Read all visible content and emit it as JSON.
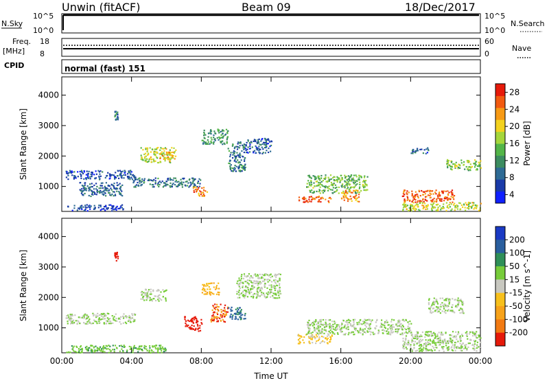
{
  "header": {
    "station": "Unwin (fitACF)",
    "beam": "Beam 09",
    "date": "18/Dec/2017"
  },
  "strips": {
    "nsky_label": "N.Sky",
    "nsky_top": "10^5",
    "nsky_bottom": "10^0",
    "nsearch_label": "N.Search",
    "nsearch_top": "10^5",
    "nsearch_bottom": "10^0",
    "freq_label_1": "Freq.",
    "freq_label_2": "[MHz]",
    "freq_top": "18",
    "freq_bottom": "8",
    "nave_label": "Nave",
    "nave_top": "60",
    "nave_bottom": "0",
    "cpid_label": "CPID",
    "cpid_value": "normal (fast) 151"
  },
  "chart_data": [
    {
      "type": "heatmap",
      "ylabel": "Slant Range [km]",
      "xlabel": "Time UT",
      "x_ticks": [
        "00:00",
        "04:00",
        "08:00",
        "12:00",
        "16:00",
        "20:00",
        "00:00"
      ],
      "y_ticks": [
        1000,
        2000,
        3000,
        4000
      ],
      "ylim": [
        180,
        4600
      ],
      "colorbar": {
        "label": "Power [dB]",
        "ticks": [
          4,
          8,
          12,
          16,
          20,
          24,
          28
        ],
        "colors": [
          "#1020ff",
          "#1a3aa8",
          "#2e6b95",
          "#3c8c60",
          "#53b548",
          "#a5d63b",
          "#f3d21f",
          "#f79a15",
          "#f25a10",
          "#e61a0a"
        ]
      },
      "blobs": [
        {
          "t": [
            0.3,
            3.5
          ],
          "r": [
            220,
            420
          ],
          "v": 6
        },
        {
          "t": [
            0.2,
            4.2
          ],
          "r": [
            1250,
            1550
          ],
          "v": 7
        },
        {
          "t": [
            1.0,
            3.5
          ],
          "r": [
            700,
            1150
          ],
          "v": 9
        },
        {
          "t": [
            3.0,
            3.2
          ],
          "r": [
            3200,
            3500
          ],
          "v": 10
        },
        {
          "t": [
            4.5,
            6.5
          ],
          "r": [
            1800,
            2300
          ],
          "v": 18
        },
        {
          "t": [
            5.5,
            6.3
          ],
          "r": [
            1900,
            2150
          ],
          "v": 22
        },
        {
          "t": [
            4.0,
            8.0
          ],
          "r": [
            1000,
            1300
          ],
          "v": 10
        },
        {
          "t": [
            7.5,
            8.3
          ],
          "r": [
            700,
            1000
          ],
          "v": 24
        },
        {
          "t": [
            8.0,
            9.5
          ],
          "r": [
            2400,
            2900
          ],
          "v": 12
        },
        {
          "t": [
            9.5,
            10.5
          ],
          "r": [
            1500,
            2500
          ],
          "v": 10
        },
        {
          "t": [
            10.5,
            12.0
          ],
          "r": [
            2100,
            2600
          ],
          "v": 8
        },
        {
          "t": [
            13.5,
            15.5
          ],
          "r": [
            500,
            700
          ],
          "v": 26
        },
        {
          "t": [
            14.0,
            17.5
          ],
          "r": [
            800,
            1400
          ],
          "v": 15
        },
        {
          "t": [
            16.0,
            17.0
          ],
          "r": [
            500,
            900
          ],
          "v": 23
        },
        {
          "t": [
            19.5,
            22.5
          ],
          "r": [
            500,
            900
          ],
          "v": 26
        },
        {
          "t": [
            19.5,
            24.0
          ],
          "r": [
            220,
            500
          ],
          "v": 18
        },
        {
          "t": [
            22.0,
            24.0
          ],
          "r": [
            1550,
            1900
          ],
          "v": 16
        },
        {
          "t": [
            20.0,
            21.0
          ],
          "r": [
            2100,
            2300
          ],
          "v": 8
        }
      ]
    },
    {
      "type": "heatmap",
      "ylabel": "Slant Range [km]",
      "xlabel": "Time UT",
      "x_ticks": [
        "00:00",
        "04:00",
        "08:00",
        "12:00",
        "16:00",
        "20:00",
        "00:00"
      ],
      "y_ticks": [
        1000,
        2000,
        3000,
        4000
      ],
      "ylim": [
        180,
        4600
      ],
      "colorbar": {
        "label": "Velocity [m s^-1]",
        "ticks": [
          200,
          100,
          50,
          15,
          -15,
          -50,
          -100,
          -200
        ],
        "colors": [
          "#1a3ac4",
          "#2a5f9e",
          "#2f8f58",
          "#77cc3a",
          "#c8c8c0",
          "#f7c01c",
          "#f7a21a",
          "#f27a12",
          "#e61a0a"
        ]
      },
      "blobs": [
        {
          "t": [
            0.2,
            4.2
          ],
          "r": [
            1150,
            1500
          ],
          "v": 0
        },
        {
          "t": [
            0.2,
            6.0
          ],
          "r": [
            200,
            450
          ],
          "v": 20
        },
        {
          "t": [
            3.0,
            3.2
          ],
          "r": [
            3200,
            3500
          ],
          "v": -180
        },
        {
          "t": [
            4.5,
            6.0
          ],
          "r": [
            1900,
            2300
          ],
          "v": 0
        },
        {
          "t": [
            7.0,
            8.0
          ],
          "r": [
            900,
            1400
          ],
          "v": -200
        },
        {
          "t": [
            8.0,
            9.0
          ],
          "r": [
            2100,
            2500
          ],
          "v": -70
        },
        {
          "t": [
            8.5,
            9.5
          ],
          "r": [
            1200,
            1800
          ],
          "v": -150
        },
        {
          "t": [
            9.5,
            10.5
          ],
          "r": [
            1300,
            1700
          ],
          "v": 80
        },
        {
          "t": [
            10.0,
            12.5
          ],
          "r": [
            2000,
            2800
          ],
          "v": 0
        },
        {
          "t": [
            13.5,
            15.5
          ],
          "r": [
            500,
            800
          ],
          "v": -40
        },
        {
          "t": [
            14.0,
            20.0
          ],
          "r": [
            800,
            1300
          ],
          "v": 0
        },
        {
          "t": [
            19.5,
            24.0
          ],
          "r": [
            250,
            900
          ],
          "v": 0
        },
        {
          "t": [
            21.0,
            23.0
          ],
          "r": [
            1500,
            2000
          ],
          "v": 0
        }
      ]
    }
  ]
}
